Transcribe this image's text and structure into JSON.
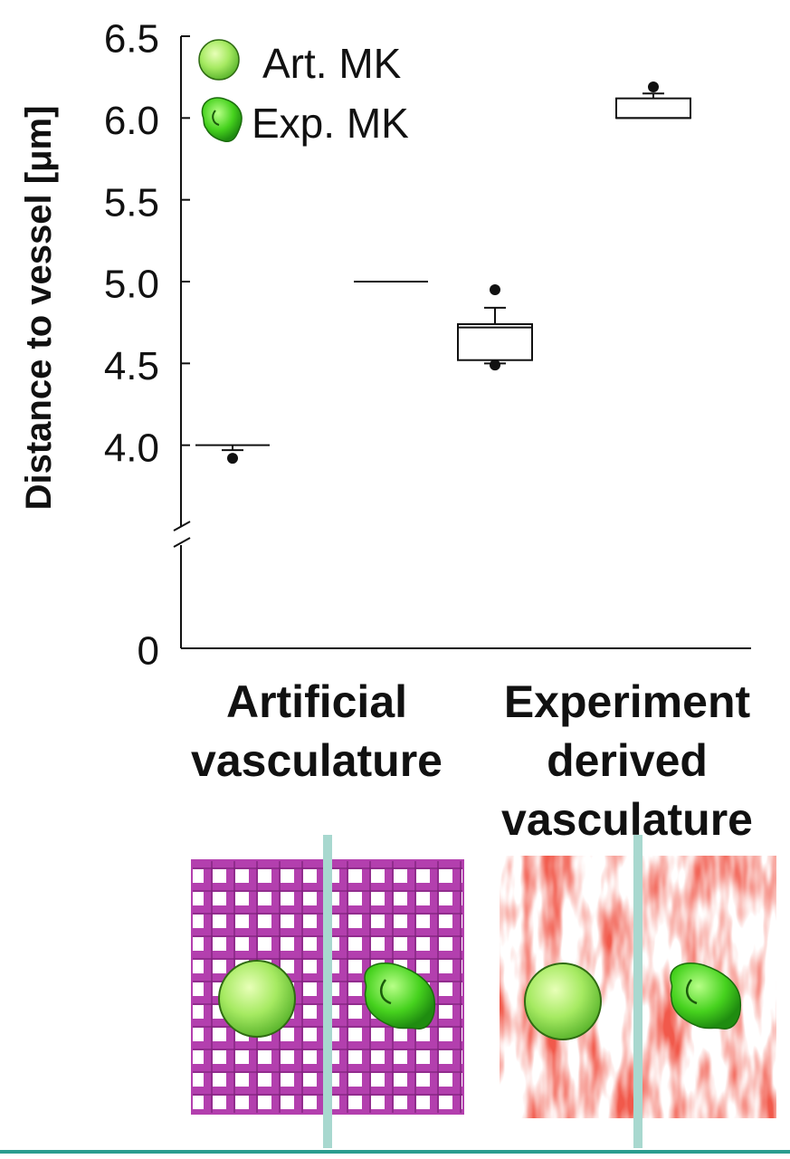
{
  "chart_data": {
    "type": "box",
    "title": "",
    "xlabel": "",
    "ylabel": "Distance to vessel [μm]",
    "ylim": [
      3.5,
      6.5
    ],
    "axis_break": true,
    "zero_label": "0",
    "yticks": [
      "4.0",
      "4.5",
      "5.0",
      "5.5",
      "6.0",
      "6.5"
    ],
    "grid": false,
    "legend_placement": "top-left",
    "groups": [
      {
        "label_lines": [
          "Artificial",
          "vasculature"
        ]
      },
      {
        "label_lines": [
          "Experiment",
          "derived",
          "vasculature"
        ]
      }
    ],
    "series": [
      {
        "name": "Art. MK",
        "icon": "sphere-icon",
        "color": "#9fe060"
      },
      {
        "name": "Exp. MK",
        "icon": "blob-icon",
        "color": "#44cc22"
      }
    ],
    "boxes": [
      {
        "group": 0,
        "series": 0,
        "q1": 4.0,
        "median": 4.0,
        "q3": 4.0,
        "whisker_low": 3.97,
        "whisker_high": 4.0,
        "outliers": [
          3.92
        ]
      },
      {
        "group": 0,
        "series": 1,
        "q1": 5.0,
        "median": 5.0,
        "q3": 5.0,
        "whisker_low": 5.0,
        "whisker_high": 5.0,
        "outliers": []
      },
      {
        "group": 1,
        "series": 0,
        "q1": 4.52,
        "median": 4.72,
        "q3": 4.74,
        "whisker_low": 4.5,
        "whisker_high": 4.84,
        "outliers": [
          4.95,
          4.49
        ]
      },
      {
        "group": 1,
        "series": 1,
        "q1": 6.0,
        "median": 6.0,
        "q3": 6.12,
        "whisker_low": 6.0,
        "whisker_high": 6.15,
        "outliers": [
          6.19
        ]
      }
    ],
    "illustrations": [
      {
        "name": "artificial-vasculature-illustration",
        "vessel_color": "#b33fae",
        "shape": "grid"
      },
      {
        "name": "experiment-vasculature-illustration",
        "vessel_color": "#e11a12",
        "shape": "organic"
      }
    ],
    "divider_color": "#a8d8cf",
    "bottom_rule_color": "#2a9d8f"
  }
}
